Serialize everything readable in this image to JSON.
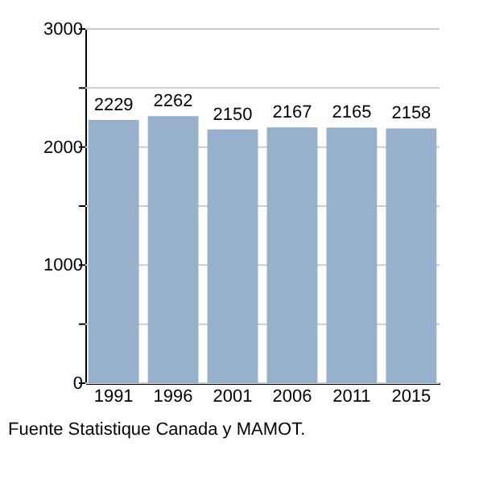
{
  "chart_data": {
    "type": "bar",
    "categories": [
      "1991",
      "1996",
      "2001",
      "2006",
      "2011",
      "2015"
    ],
    "values": [
      2229,
      2262,
      2150,
      2167,
      2165,
      2158
    ],
    "color": "#97b1cd",
    "ylim": [
      0,
      3000
    ],
    "yticks": [
      0,
      {
        "value": 500,
        "label": null
      },
      1000,
      {
        "value": 1500,
        "label": null
      },
      2000,
      {
        "value": 2500,
        "label": null
      },
      3000
    ],
    "grid": "y",
    "data_labels": true,
    "annotations": [
      "Fuente Statistique Canada y MAMOT."
    ]
  }
}
